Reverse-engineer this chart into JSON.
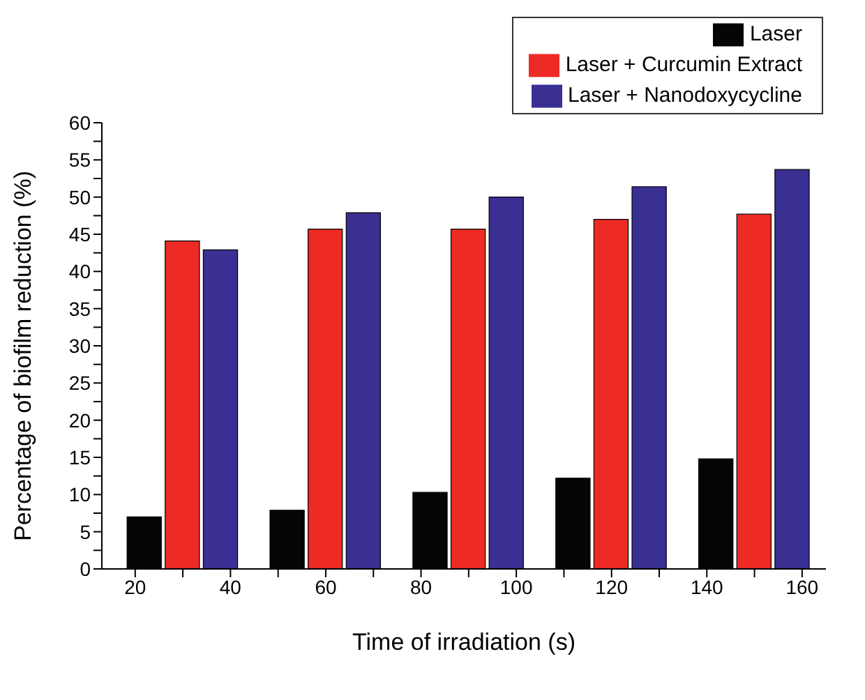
{
  "chart_data": {
    "type": "bar",
    "xlabel": "Time of irradiation (s)",
    "ylabel": "Percentage of biofilm reduction (%)",
    "series": [
      {
        "name": "Laser",
        "color": "#050505",
        "x": [
          22,
          52,
          82,
          112,
          142
        ],
        "values": [
          7.0,
          7.9,
          10.3,
          12.2,
          14.8
        ]
      },
      {
        "name": "Laser + Curcumin Extract",
        "color": "#ee2a24",
        "x": [
          30,
          60,
          90,
          120,
          150
        ],
        "values": [
          44.1,
          45.7,
          45.7,
          47.0,
          47.7
        ]
      },
      {
        "name": "Laser + Nanodoxycycline",
        "color": "#3a2f92",
        "x": [
          38,
          68,
          98,
          128,
          158
        ],
        "values": [
          42.9,
          47.9,
          50.0,
          51.4,
          53.7
        ]
      }
    ],
    "xlim": [
      13,
      165
    ],
    "xticks": [
      20,
      {
        "value": 30,
        "label": null
      },
      40,
      {
        "value": 50,
        "label": null
      },
      60,
      {
        "value": 70,
        "label": null
      },
      80,
      {
        "value": 90,
        "label": null
      },
      100,
      {
        "value": 110,
        "label": null
      },
      120,
      {
        "value": 130,
        "label": null
      },
      140,
      {
        "value": 150,
        "label": null
      },
      160
    ],
    "ylim": [
      0,
      60
    ],
    "yticks": [
      0,
      {
        "value": 2.5,
        "label": null
      },
      5,
      {
        "value": 7.5,
        "label": null
      },
      10,
      {
        "value": 12.5,
        "label": null
      },
      15,
      {
        "value": 17.5,
        "label": null
      },
      20,
      {
        "value": 22.5,
        "label": null
      },
      25,
      {
        "value": 27.5,
        "label": null
      },
      30,
      {
        "value": 32.5,
        "label": null
      },
      35,
      {
        "value": 37.5,
        "label": null
      },
      40,
      {
        "value": 42.5,
        "label": null
      },
      45,
      {
        "value": 47.5,
        "label": null
      },
      50,
      {
        "value": 52.5,
        "label": null
      },
      55,
      {
        "value": 57.5,
        "label": null
      },
      60
    ],
    "legend": "top right",
    "grid": false
  }
}
